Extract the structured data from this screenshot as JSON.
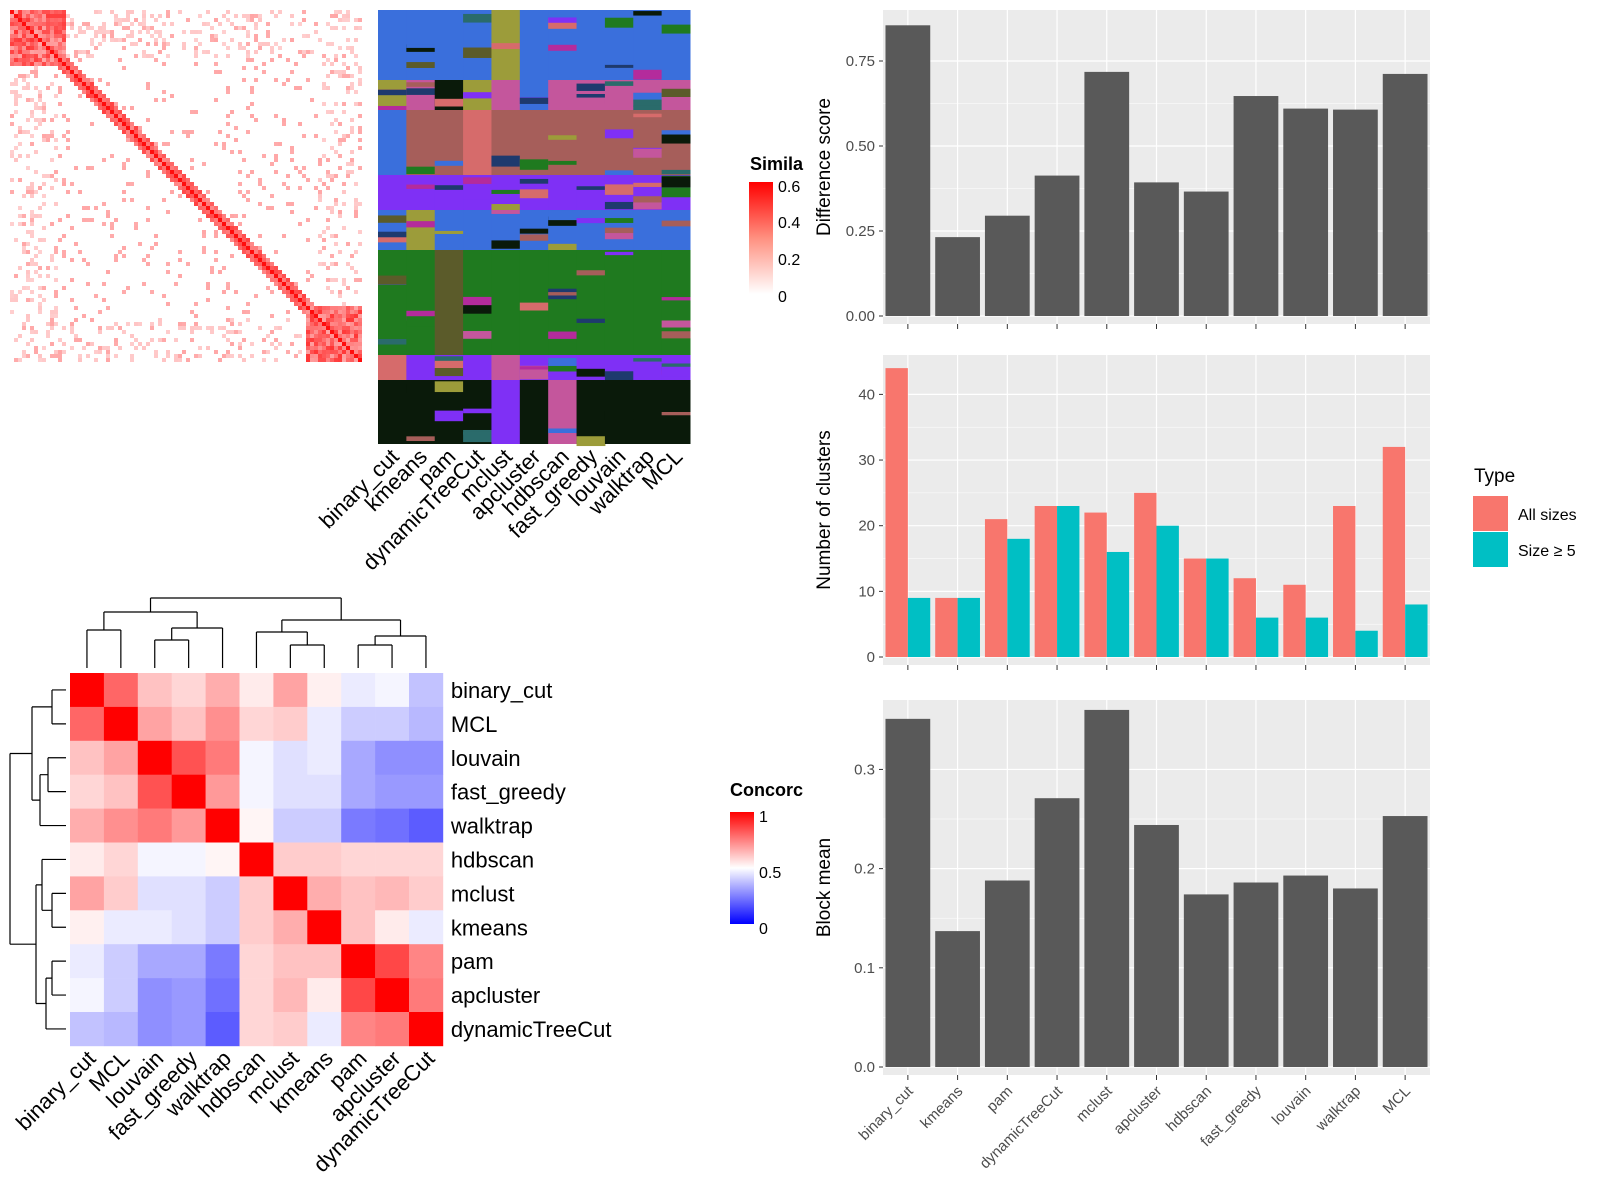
{
  "methods_x": [
    "binary_cut",
    "kmeans",
    "pam",
    "dynamicTreeCut",
    "mclust",
    "apcluster",
    "hdbscan",
    "fast_greedy",
    "louvain",
    "walktrap",
    "MCL"
  ],
  "similarity_legend": {
    "title": "Simila",
    "ticks": [
      "0.6",
      "0.4",
      "0.2",
      "0"
    ]
  },
  "concordance_legend": {
    "title": "Concorc",
    "ticks": [
      "1",
      "0.5",
      "0"
    ]
  },
  "concordance_order": [
    "binary_cut",
    "MCL",
    "louvain",
    "fast_greedy",
    "walktrap",
    "hdbscan",
    "mclust",
    "kmeans",
    "pam",
    "apcluster",
    "dynamicTreeCut"
  ],
  "concordance_matrix": [
    [
      1.0,
      0.8,
      0.62,
      0.58,
      0.66,
      0.54,
      0.68,
      0.53,
      0.46,
      0.48,
      0.38
    ],
    [
      0.8,
      1.0,
      0.68,
      0.62,
      0.72,
      0.58,
      0.6,
      0.46,
      0.4,
      0.4,
      0.36
    ],
    [
      0.62,
      0.68,
      1.0,
      0.84,
      0.76,
      0.48,
      0.44,
      0.46,
      0.33,
      0.28,
      0.28
    ],
    [
      0.58,
      0.62,
      0.84,
      1.0,
      0.7,
      0.48,
      0.44,
      0.44,
      0.33,
      0.3,
      0.3
    ],
    [
      0.66,
      0.72,
      0.76,
      0.7,
      1.0,
      0.52,
      0.4,
      0.4,
      0.24,
      0.22,
      0.18
    ],
    [
      0.54,
      0.58,
      0.48,
      0.48,
      0.52,
      1.0,
      0.6,
      0.6,
      0.58,
      0.58,
      0.58
    ],
    [
      0.68,
      0.6,
      0.44,
      0.44,
      0.4,
      0.6,
      1.0,
      0.66,
      0.62,
      0.64,
      0.6
    ],
    [
      0.53,
      0.46,
      0.46,
      0.44,
      0.4,
      0.6,
      0.66,
      1.0,
      0.62,
      0.54,
      0.46
    ],
    [
      0.46,
      0.4,
      0.33,
      0.33,
      0.24,
      0.58,
      0.62,
      0.62,
      1.0,
      0.86,
      0.74
    ],
    [
      0.48,
      0.4,
      0.28,
      0.3,
      0.22,
      0.58,
      0.64,
      0.54,
      0.86,
      1.0,
      0.76
    ],
    [
      0.38,
      0.36,
      0.28,
      0.3,
      0.18,
      0.58,
      0.6,
      0.46,
      0.74,
      0.76,
      1.0
    ]
  ],
  "chart_data": [
    {
      "type": "bar",
      "categories": [
        "binary_cut",
        "kmeans",
        "pam",
        "dynamicTreeCut",
        "mclust",
        "apcluster",
        "hdbscan",
        "fast_greedy",
        "louvain",
        "walktrap",
        "MCL"
      ],
      "values": [
        0.855,
        0.232,
        0.295,
        0.413,
        0.718,
        0.393,
        0.366,
        0.647,
        0.61,
        0.607,
        0.712
      ],
      "title": "",
      "xlabel": "",
      "ylabel": "Difference score",
      "ylim": [
        0,
        0.9
      ],
      "yticks": [
        "0.00",
        "0.25",
        "0.50",
        "0.75"
      ],
      "grid": true,
      "bar_color": "#595959"
    },
    {
      "type": "bar",
      "categories": [
        "binary_cut",
        "kmeans",
        "pam",
        "dynamicTreeCut",
        "mclust",
        "apcluster",
        "hdbscan",
        "fast_greedy",
        "louvain",
        "walktrap",
        "MCL"
      ],
      "series": [
        {
          "name": "All sizes",
          "color": "#F8766D",
          "values": [
            44,
            9,
            21,
            23,
            22,
            25,
            15,
            12,
            11,
            23,
            32
          ]
        },
        {
          "name": "Size ≥ 5",
          "color": "#00BFC4",
          "values": [
            9,
            9,
            18,
            23,
            16,
            20,
            15,
            6,
            6,
            4,
            8
          ]
        }
      ],
      "title": "",
      "xlabel": "",
      "ylabel": "Number of clusters",
      "ylim": [
        0,
        46
      ],
      "yticks": [
        "0",
        "10",
        "20",
        "30",
        "40"
      ],
      "legend_title": "Type",
      "legend_position": "right",
      "grid": true
    },
    {
      "type": "bar",
      "categories": [
        "binary_cut",
        "kmeans",
        "pam",
        "dynamicTreeCut",
        "mclust",
        "apcluster",
        "hdbscan",
        "fast_greedy",
        "louvain",
        "walktrap",
        "MCL"
      ],
      "values": [
        0.351,
        0.137,
        0.188,
        0.271,
        0.36,
        0.244,
        0.174,
        0.186,
        0.193,
        0.18,
        0.253
      ],
      "title": "",
      "xlabel": "",
      "ylabel": "Block mean",
      "ylim": [
        0,
        0.37
      ],
      "yticks": [
        "0.0",
        "0.1",
        "0.2",
        "0.3"
      ],
      "grid": true,
      "bar_color": "#595959"
    }
  ]
}
